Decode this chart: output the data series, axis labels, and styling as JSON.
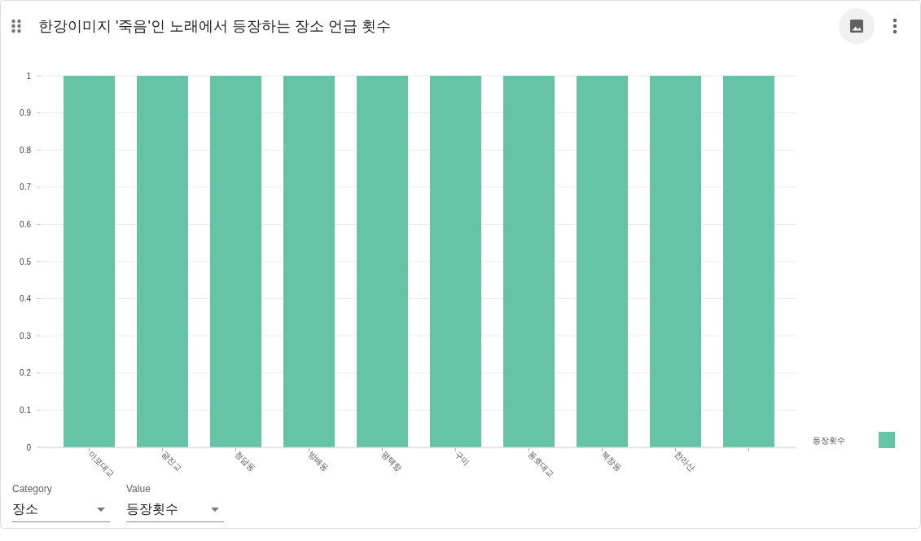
{
  "chart_data": {
    "type": "bar",
    "title": "한강이미지 '죽음'인 노래에서 등장하는 장소 언급 횟수",
    "categories": [
      "마포대교",
      "광진교",
      "청담동",
      "방배동",
      "평택항",
      "구미",
      "동호대교",
      "북창동",
      "한라산",
      null
    ],
    "series": [
      {
        "name": "등장횟수",
        "color": "#66c4a6",
        "values": [
          1,
          1,
          1,
          1,
          1,
          1,
          1,
          1,
          1,
          1
        ]
      }
    ],
    "ylim": [
      0,
      1
    ],
    "yticks": [
      0,
      0.1,
      0.2,
      0.3,
      0.4,
      0.5,
      0.6,
      0.7,
      0.8,
      0.9,
      1
    ],
    "grid": "y",
    "legend": "bottom right",
    "annotations": [
      "Category",
      "장소",
      "Value",
      "등장횟수"
    ]
  }
}
